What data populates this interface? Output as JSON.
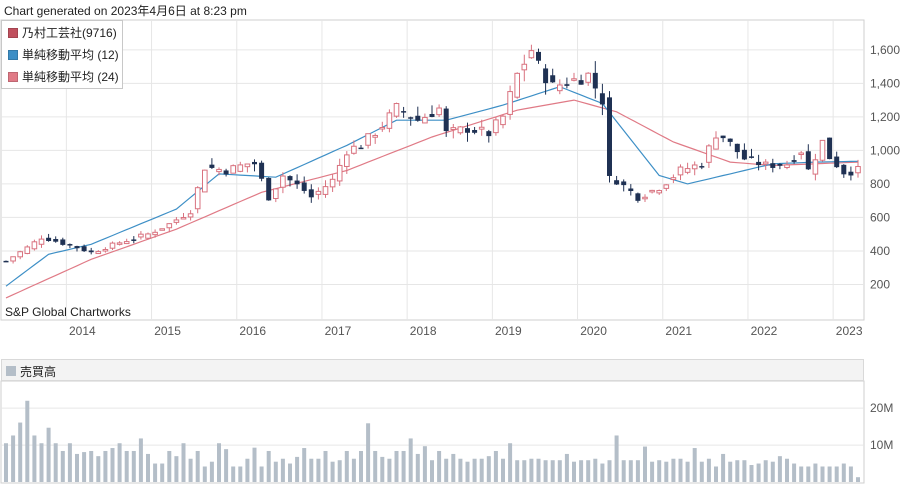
{
  "header": {
    "generated_note": "Chart generated on 2023年4月6日 at 8:23 pm"
  },
  "credit": "S&P Global Chartworks",
  "colors": {
    "up_candle": "#d9727f",
    "down_candle": "#1f3153",
    "ma12": "#3d8fc6",
    "ma24": "#e07a86",
    "volume": "#b4bec8",
    "grid": "#e6e6e6",
    "axis_text": "#555555"
  },
  "chart_data": [
    {
      "type": "candlestick",
      "legend": [
        {
          "label": "乃村工芸社(9716)",
          "color": "#c0505e"
        },
        {
          "label": "単純移動平均 (12)",
          "color": "#3d8fc6"
        },
        {
          "label": "単純移動平均 (24)",
          "color": "#e07a86"
        }
      ],
      "y_axis": {
        "ticks": [
          200,
          400,
          600,
          800,
          1000,
          1200,
          1400,
          1600
        ],
        "tick_labels": [
          "200",
          "400",
          "600",
          "800",
          "1,000",
          "1,200",
          "1,400",
          "1,600"
        ],
        "range": [
          0,
          1760
        ]
      },
      "x_axis": {
        "ticks": [
          "2014",
          "2015",
          "2016",
          "2017",
          "2018",
          "2019",
          "2020",
          "2021",
          "2022",
          "2023"
        ],
        "start": "2013-04",
        "months": 121
      },
      "grid": true,
      "legend_position": "top-left",
      "anchors": [
        [
          0,
          340
        ],
        [
          3,
          420
        ],
        [
          5,
          480
        ],
        [
          6,
          470
        ],
        [
          10,
          420
        ],
        [
          12,
          390
        ],
        [
          16,
          450
        ],
        [
          20,
          500
        ],
        [
          23,
          560
        ],
        [
          26,
          640
        ],
        [
          28,
          900
        ],
        [
          31,
          880
        ],
        [
          34,
          920
        ],
        [
          35,
          920
        ],
        [
          37,
          720
        ],
        [
          39,
          850
        ],
        [
          42,
          760
        ],
        [
          43,
          720
        ],
        [
          46,
          820
        ],
        [
          48,
          1000
        ],
        [
          50,
          1030
        ],
        [
          53,
          1150
        ],
        [
          55,
          1250
        ],
        [
          58,
          1180
        ],
        [
          61,
          1250
        ],
        [
          62,
          1100
        ],
        [
          65,
          1130
        ],
        [
          68,
          1100
        ],
        [
          70,
          1200
        ],
        [
          72,
          1450
        ],
        [
          74,
          1600
        ],
        [
          75,
          1500
        ],
        [
          77,
          1380
        ],
        [
          80,
          1420
        ],
        [
          82,
          1450
        ],
        [
          84,
          1300
        ],
        [
          85,
          830
        ],
        [
          86,
          820
        ],
        [
          89,
          720
        ],
        [
          92,
          780
        ],
        [
          95,
          880
        ],
        [
          98,
          920
        ],
        [
          100,
          1100
        ],
        [
          101,
          1080
        ],
        [
          104,
          950
        ],
        [
          107,
          910
        ],
        [
          110,
          920
        ],
        [
          112,
          1000
        ],
        [
          113,
          880
        ],
        [
          115,
          1050
        ],
        [
          116,
          960
        ],
        [
          118,
          870
        ],
        [
          120,
          880
        ]
      ],
      "ma12_anchors": [
        [
          0,
          190
        ],
        [
          6,
          380
        ],
        [
          12,
          440
        ],
        [
          24,
          650
        ],
        [
          30,
          860
        ],
        [
          38,
          840
        ],
        [
          48,
          1030
        ],
        [
          55,
          1180
        ],
        [
          62,
          1180
        ],
        [
          70,
          1270
        ],
        [
          78,
          1380
        ],
        [
          84,
          1280
        ],
        [
          92,
          850
        ],
        [
          96,
          800
        ],
        [
          102,
          860
        ],
        [
          108,
          920
        ],
        [
          114,
          930
        ],
        [
          120,
          935
        ]
      ],
      "ma24_anchors": [
        [
          0,
          120
        ],
        [
          12,
          350
        ],
        [
          24,
          530
        ],
        [
          36,
          750
        ],
        [
          48,
          880
        ],
        [
          60,
          1080
        ],
        [
          72,
          1240
        ],
        [
          80,
          1300
        ],
        [
          86,
          1230
        ],
        [
          94,
          1050
        ],
        [
          102,
          930
        ],
        [
          108,
          910
        ],
        [
          114,
          920
        ],
        [
          120,
          930
        ]
      ]
    },
    {
      "type": "bar",
      "title": "売買高",
      "y_axis": {
        "ticks": [
          10000000,
          20000000
        ],
        "tick_labels": [
          "10M",
          "20M"
        ],
        "range": [
          0,
          26000000
        ]
      },
      "volumes": [
        10.5,
        12.6,
        16.1,
        22.0,
        12.6,
        10.5,
        14.7,
        10.5,
        8.4,
        10.5,
        7.6,
        8.1,
        8.4,
        7.0,
        8.4,
        9.2,
        10.5,
        8.4,
        8.4,
        11.8,
        7.6,
        5.0,
        5.0,
        8.4,
        7.0,
        10.5,
        6.3,
        8.4,
        4.2,
        5.5,
        10.5,
        8.9,
        4.2,
        4.2,
        6.3,
        9.3,
        4.2,
        8.4,
        5.5,
        6.3,
        5.0,
        6.8,
        9.2,
        6.3,
        6.3,
        8.4,
        5.5,
        5.9,
        8.4,
        6.3,
        8.4,
        15.9,
        8.4,
        6.8,
        6.3,
        8.4,
        8.4,
        11.8,
        7.6,
        9.7,
        5.9,
        8.4,
        6.3,
        7.6,
        6.3,
        5.5,
        6.3,
        6.3,
        7.0,
        8.4,
        6.3,
        10.5,
        5.9,
        5.9,
        6.3,
        6.3,
        5.9,
        5.9,
        5.9,
        7.6,
        5.5,
        5.9,
        5.9,
        6.3,
        5.0,
        5.9,
        12.6,
        5.9,
        5.9,
        5.9,
        9.6,
        5.5,
        5.9,
        5.5,
        6.3,
        6.3,
        5.5,
        9.2,
        5.5,
        6.3,
        4.2,
        7.6,
        5.5,
        5.9,
        5.9,
        4.6,
        5.0,
        5.9,
        5.5,
        7.0,
        6.3,
        5.0,
        4.2,
        4.2,
        5.0,
        4.2,
        4.2,
        4.2,
        5.0,
        4.2,
        1.3
      ]
    }
  ]
}
